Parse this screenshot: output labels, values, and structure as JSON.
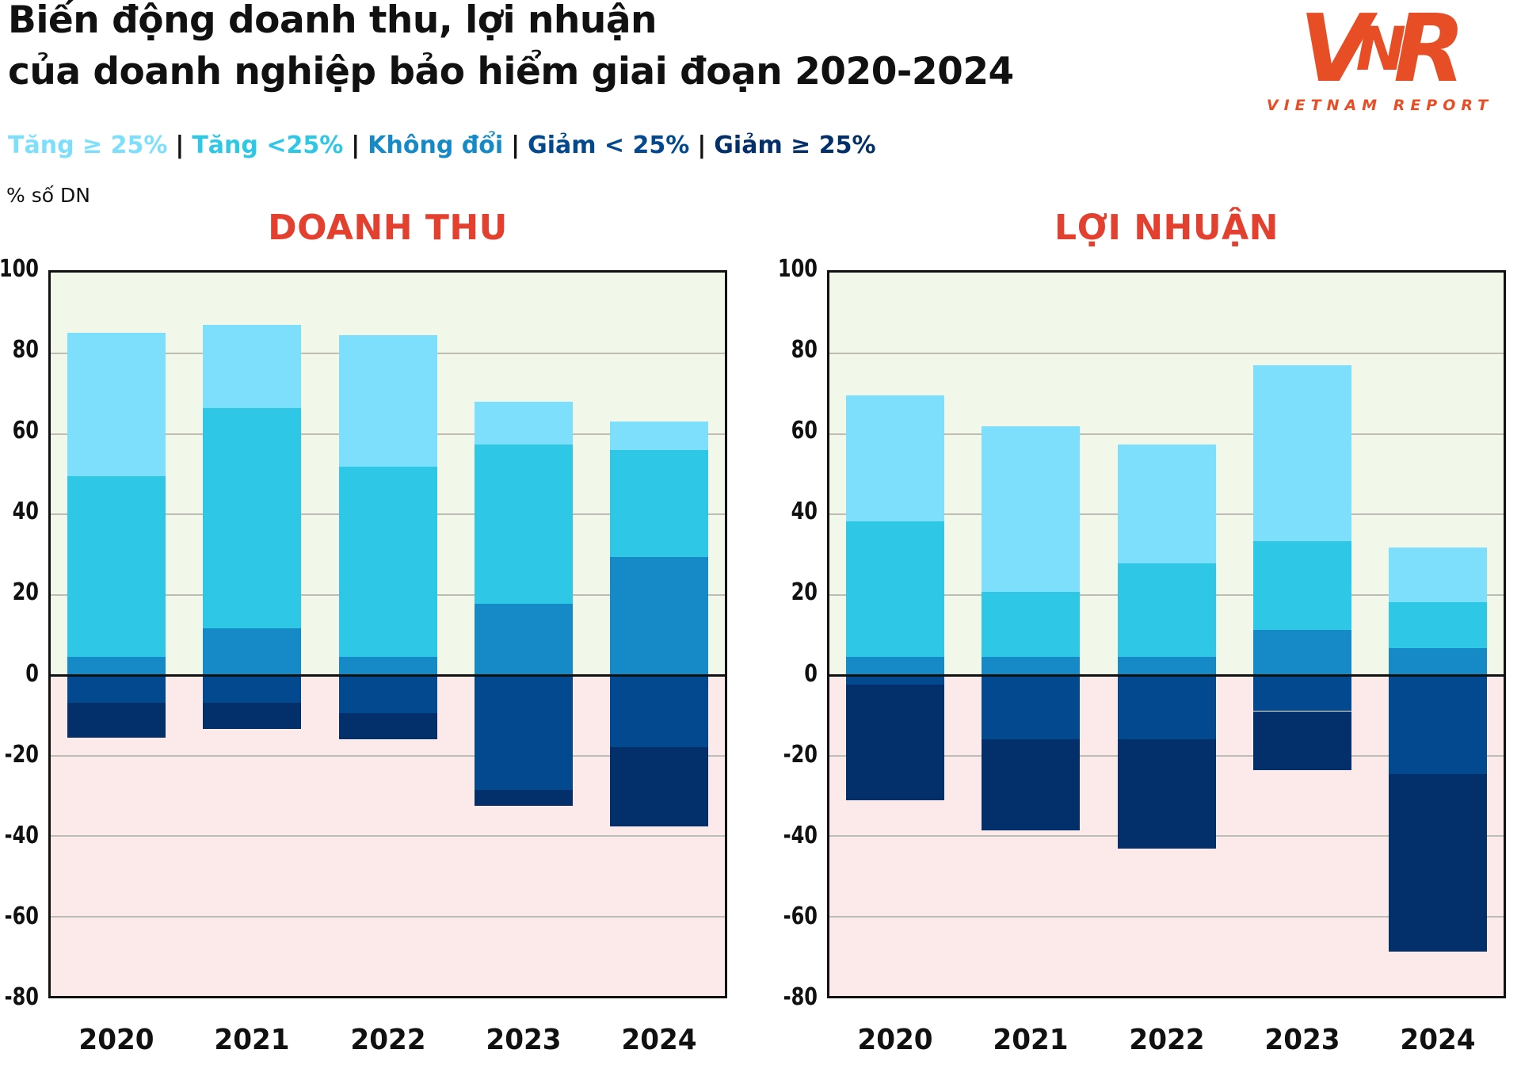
{
  "header": {
    "title_line1": "Biến động doanh thu, lợi nhuận",
    "title_line2": "của doanh nghiệp bảo hiểm giai đoạn 2020-2024"
  },
  "logo": {
    "letter_v": "V",
    "letter_n": "N",
    "letter_r": "R",
    "subtitle": "VIETNAM REPORT"
  },
  "unit_label": "% số DN",
  "legend": {
    "separator": "|",
    "items": [
      {
        "label": "Tăng ≥ 25%",
        "color_key": "inc_ge_25"
      },
      {
        "label": "Tăng <25%",
        "color_key": "inc_lt_25"
      },
      {
        "label": "Không đổi",
        "color_key": "unchanged"
      },
      {
        "label": "Giảm < 25%",
        "color_key": "dec_lt_25"
      },
      {
        "label": "Giảm ≥ 25%",
        "color_key": "dec_ge_25"
      }
    ]
  },
  "colors": {
    "inc_ge_25": "#7EDFFC",
    "inc_lt_25": "#2EC7E6",
    "unchanged": "#168AC6",
    "dec_lt_25": "#03498F",
    "dec_ge_25": "#03306B",
    "bg_positive": "#F1F7E9",
    "bg_negative": "#FCE9E9",
    "title_red": "#E3402F",
    "logo_orange": "#E84E26",
    "grid": "#bdbdb5",
    "axis_black": "#111111"
  },
  "chart_data": [
    {
      "type": "bar",
      "stacked": true,
      "diverging": true,
      "title": "DOANH THU",
      "categories": [
        "2020",
        "2021",
        "2022",
        "2023",
        "2024"
      ],
      "ylim": [
        -80,
        100
      ],
      "yticks": [
        100,
        80,
        60,
        40,
        20,
        0,
        -20,
        -40,
        -60,
        -80
      ],
      "grid": true,
      "legend_position": "top-left-shared",
      "series": [
        {
          "name": "Tăng ≥ 25%",
          "key": "inc_ge_25",
          "values": [
            35.5,
            20.5,
            32.5,
            10.5,
            7
          ]
        },
        {
          "name": "Tăng <25%",
          "key": "inc_lt_25",
          "values": [
            44.5,
            54.5,
            47,
            39.5,
            26.5
          ]
        },
        {
          "name": "Không đổi",
          "key": "unchanged",
          "values": [
            4.5,
            11.5,
            4.5,
            17.5,
            29
          ]
        },
        {
          "name": "Giảm < 25%",
          "key": "dec_lt_25",
          "values": [
            -7,
            -7,
            -9.5,
            -28.5,
            -18
          ]
        },
        {
          "name": "Giảm ≥ 25%",
          "key": "dec_ge_25",
          "values": [
            -8.5,
            -6.5,
            -6.5,
            -4,
            -19.5
          ]
        }
      ]
    },
    {
      "type": "bar",
      "stacked": true,
      "diverging": true,
      "title": "LỢI NHUẬN",
      "categories": [
        "2020",
        "2021",
        "2022",
        "2023",
        "2024"
      ],
      "ylim": [
        -80,
        100
      ],
      "yticks": [
        100,
        80,
        60,
        40,
        20,
        0,
        -20,
        -40,
        -60,
        -80
      ],
      "grid": true,
      "legend_position": "top-left-shared",
      "series": [
        {
          "name": "Tăng ≥ 25%",
          "key": "inc_ge_25",
          "values": [
            31,
            41,
            29.5,
            43.5,
            13.5
          ]
        },
        {
          "name": "Tăng <25%",
          "key": "inc_lt_25",
          "values": [
            33.5,
            16,
            23,
            22,
            11.5
          ]
        },
        {
          "name": "Không đổi",
          "key": "unchanged",
          "values": [
            4.5,
            4.5,
            4.5,
            11,
            6.5
          ]
        },
        {
          "name": "Giảm < 25%",
          "key": "dec_lt_25",
          "values": [
            -2.5,
            -16,
            -16,
            -9,
            -24.5
          ]
        },
        {
          "name": "Giảm ≥ 25%",
          "key": "dec_ge_25",
          "values": [
            -28.5,
            -22.5,
            -27,
            -14.5,
            -44
          ]
        }
      ]
    }
  ]
}
